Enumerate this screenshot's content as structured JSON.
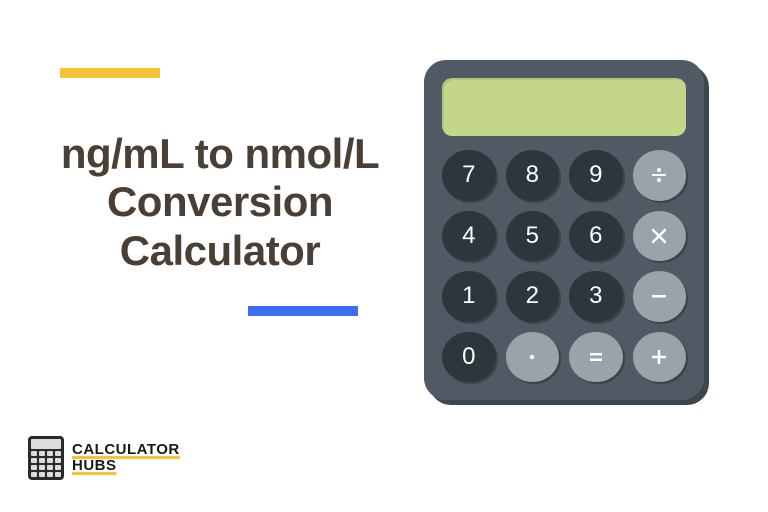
{
  "title": "ng/mL to nmol/L Conversion Calculator",
  "yellow_bar": {
    "color": "#f7c332"
  },
  "blue_bar": {
    "color": "#3c6ff0"
  },
  "logo": {
    "line1": "CALCULATOR",
    "line2": "HUBS",
    "underline_color": "#f7c332"
  },
  "calculator": {
    "body_color": "#505a64",
    "shadow_color": "#3d454d",
    "display_color": "#c4d68a",
    "num_key_color": "#2d353d",
    "op_key_color": "#9aa2aa",
    "key_text_color": "#ffffff",
    "keys": [
      {
        "label": "7",
        "type": "num"
      },
      {
        "label": "8",
        "type": "num"
      },
      {
        "label": "9",
        "type": "num"
      },
      {
        "label": "÷",
        "type": "op",
        "icon": "divide"
      },
      {
        "label": "4",
        "type": "num"
      },
      {
        "label": "5",
        "type": "num"
      },
      {
        "label": "6",
        "type": "num"
      },
      {
        "label": "×",
        "type": "op",
        "icon": "multiply"
      },
      {
        "label": "1",
        "type": "num"
      },
      {
        "label": "2",
        "type": "num"
      },
      {
        "label": "3",
        "type": "num"
      },
      {
        "label": "−",
        "type": "op",
        "icon": "minus"
      },
      {
        "label": "0",
        "type": "num"
      },
      {
        "label": "·",
        "type": "op",
        "icon": "dot"
      },
      {
        "label": "=",
        "type": "op",
        "icon": "equals"
      },
      {
        "label": "+",
        "type": "op",
        "icon": "plus"
      }
    ]
  }
}
